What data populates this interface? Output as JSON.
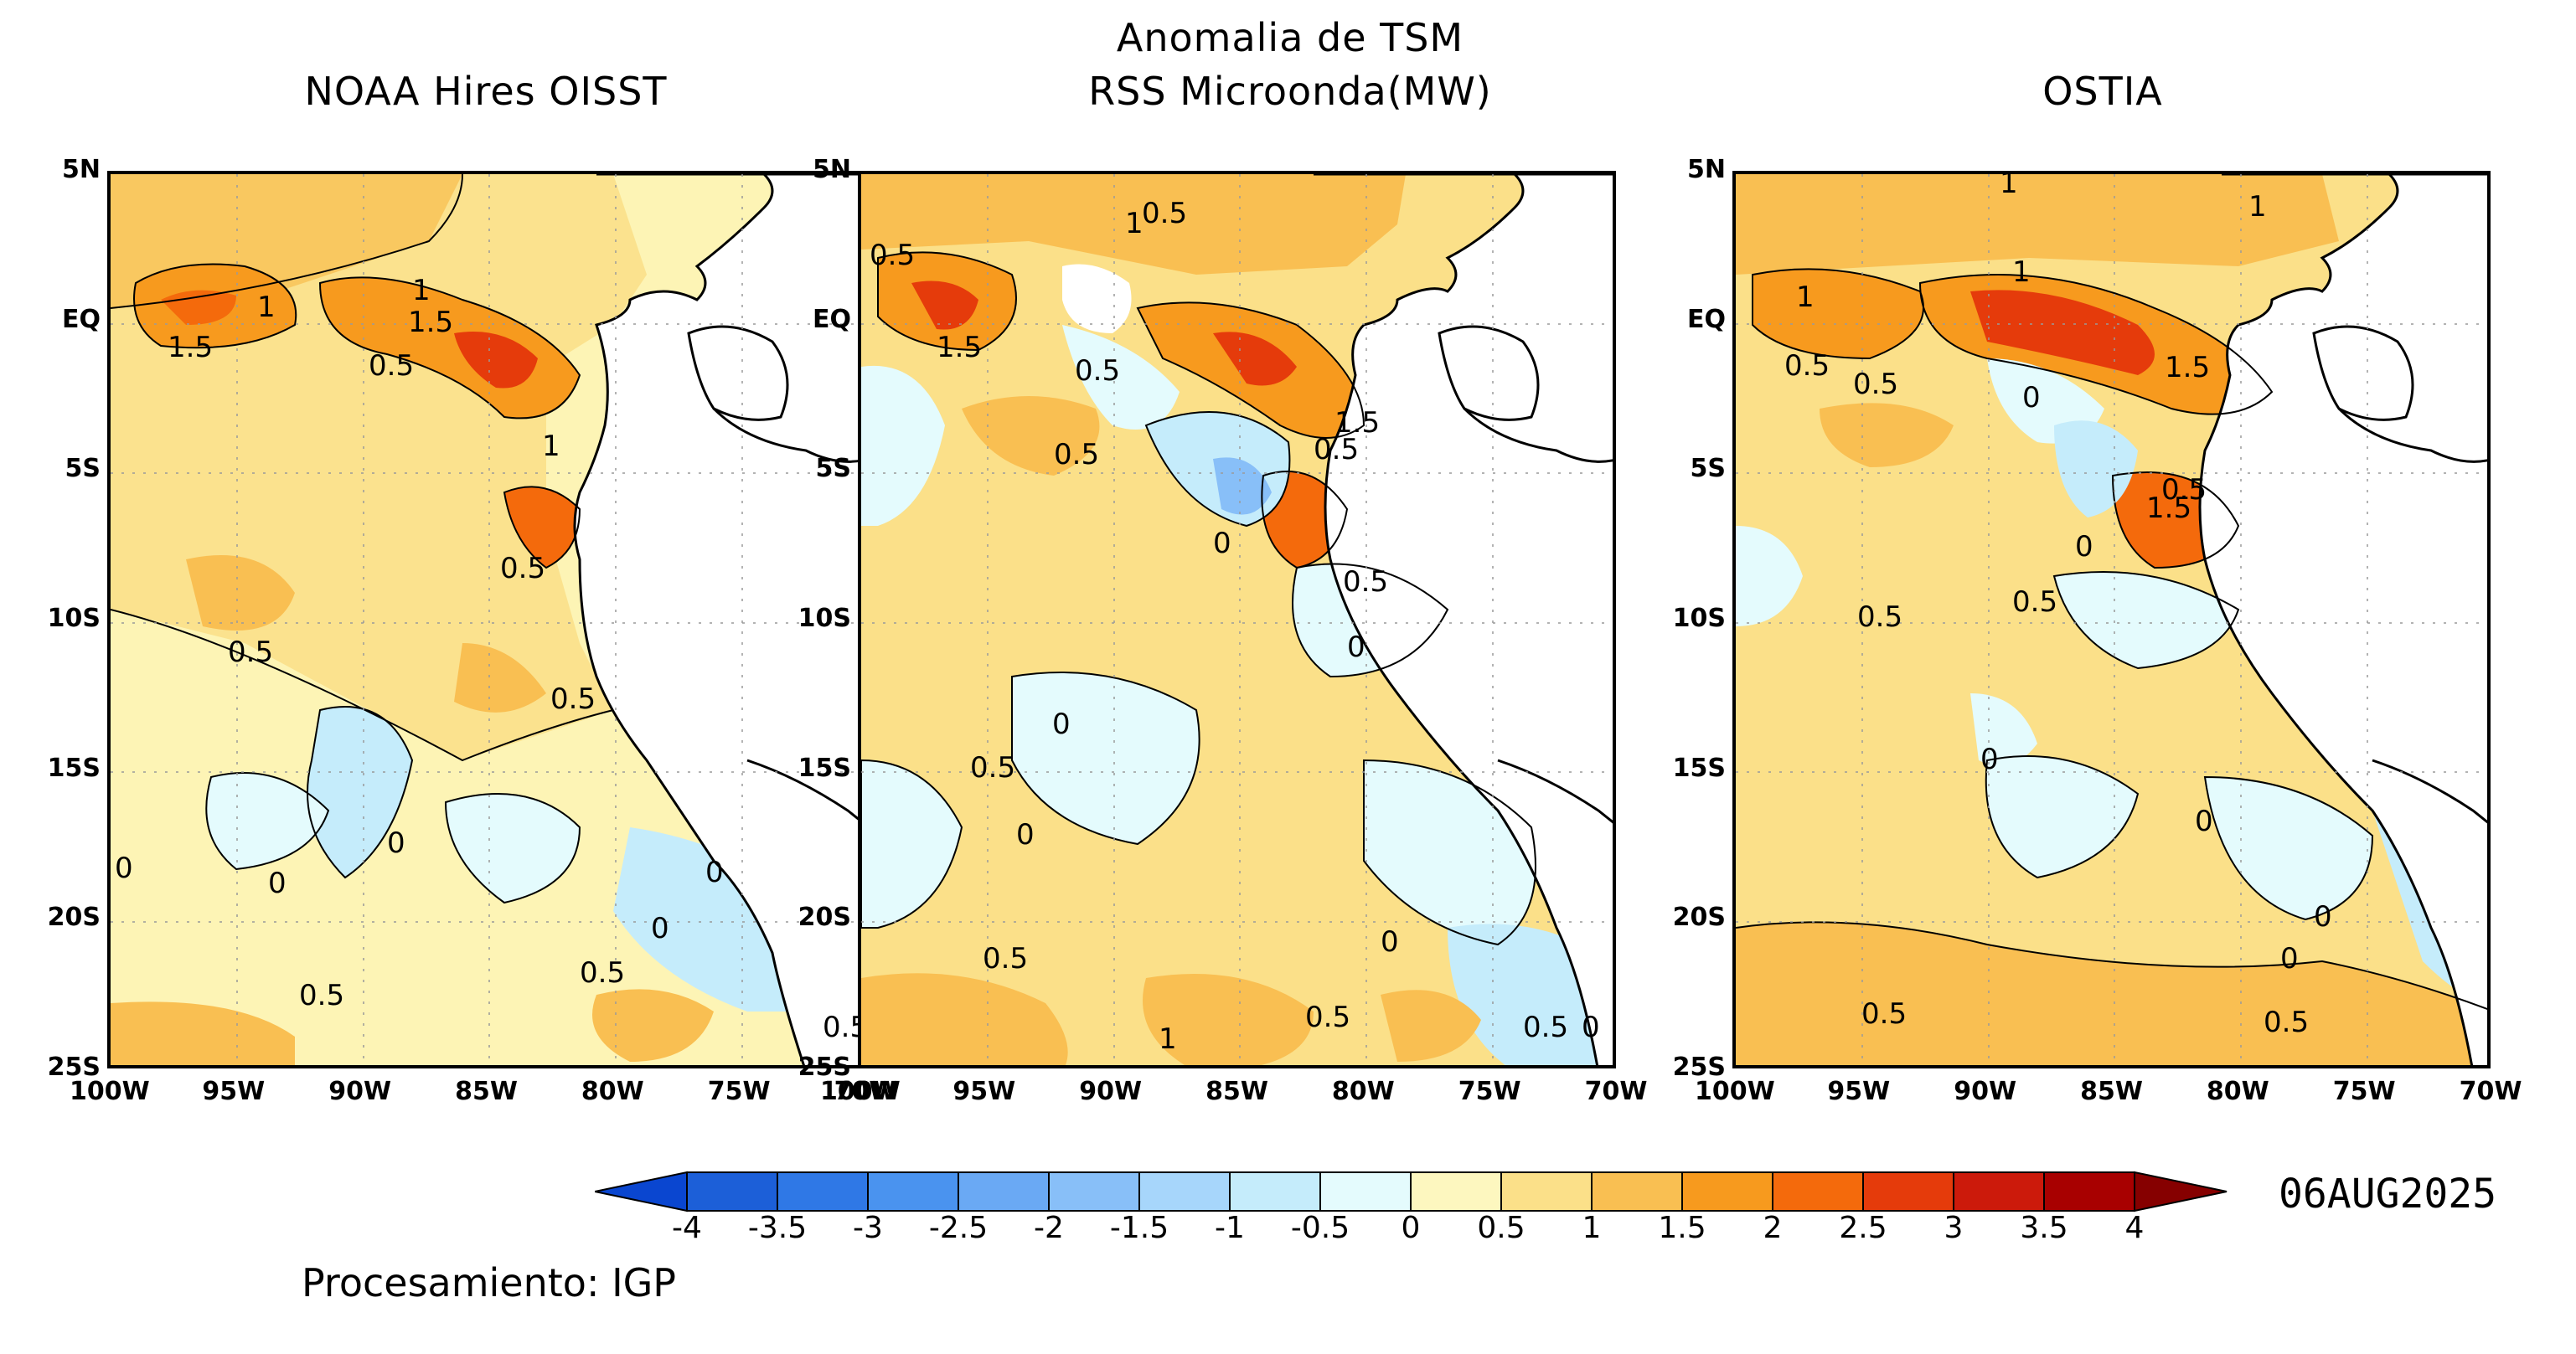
{
  "figure": {
    "main_title_line1": "Anomalia de TSM",
    "main_title_line2": "RSS Microonda(MW)",
    "date": "06AUG2025",
    "credit": "Procesamiento: IGP"
  },
  "panels": [
    {
      "id": "noaa",
      "title": "NOAA Hires OISST"
    },
    {
      "id": "rss",
      "title": ""
    },
    {
      "id": "ostia",
      "title": "OSTIA"
    }
  ],
  "axes": {
    "y_ticks": [
      "5N",
      "EQ",
      "5S",
      "10S",
      "15S",
      "20S",
      "25S"
    ],
    "x_ticks": [
      "100W",
      "95W",
      "90W",
      "85W",
      "80W",
      "75W",
      "70W"
    ]
  },
  "colorbar": {
    "levels": [
      "-4",
      "-3.5",
      "-3",
      "-2.5",
      "-2",
      "-1.5",
      "-1",
      "-0.5",
      "0",
      "0.5",
      "1",
      "1.5",
      "2",
      "2.5",
      "3",
      "3.5",
      "4"
    ],
    "colors": [
      "#1c5fd8",
      "#2f78e6",
      "#4a93ef",
      "#6aa9f4",
      "#88bff8",
      "#a7d6fb",
      "#c5ecfb",
      "#e4fbfd",
      "#fdf7bf",
      "#fbe089",
      "#f9bf52",
      "#f79a1e",
      "#f46a0c",
      "#e53b0b",
      "#cc1a0b",
      "#a80000"
    ],
    "under_color": "#0a46d0",
    "over_color": "#860000"
  },
  "contour_labels": {
    "noaa": [
      "1.5",
      "1",
      "1",
      "1.5",
      "0.5",
      "1",
      "0.5",
      "0.5",
      "0.5",
      "0",
      "0",
      "0",
      "0",
      "0.5",
      "0.5",
      "0",
      "0.5"
    ],
    "rss": [
      "0.5",
      "1.5",
      "0.5",
      "1",
      "0.5",
      "1.5",
      "0.5",
      "0",
      "0.5",
      "0",
      "0",
      "0.5",
      "0",
      "0.5",
      "0",
      "0.5",
      "1",
      "0.5",
      "0.5",
      "0"
    ],
    "ostia": [
      "1",
      "1",
      "1",
      "1",
      "0.5",
      "0.5",
      "0",
      "1.5",
      "1.5",
      "0.5",
      "0",
      "0.5",
      "0.5",
      "0",
      "0",
      "0",
      "0",
      "0.5",
      "0.5"
    ]
  }
}
